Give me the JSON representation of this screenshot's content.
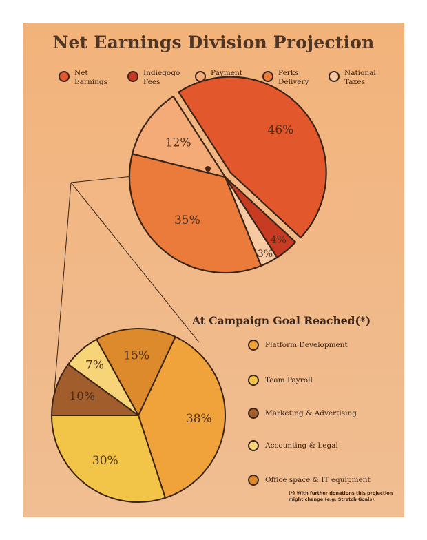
{
  "title": "Net Earnings Division Projection",
  "legend_top": [
    {
      "label": "Net\nEarnings",
      "color": "#e3572c"
    },
    {
      "label": "Indiegogo\nFees",
      "color": "#c73b22"
    },
    {
      "label": "Payment\nProcessing",
      "color": "#f4ab78"
    },
    {
      "label": "Perks\nDelivery",
      "color": "#eb7b3b"
    },
    {
      "label": "National\nTaxes",
      "color": "#f7c9a2"
    }
  ],
  "subtitle": "At Campaign Goal Reached(*)",
  "legend_bottom": [
    {
      "label": "Platform Development",
      "color": "#f0a33b"
    },
    {
      "label": "Team Payroll",
      "color": "#f2c548"
    },
    {
      "label": "Marketing & Advertising",
      "color": "#a15d2c"
    },
    {
      "label": "Accounting & Legal",
      "color": "#f7d477"
    },
    {
      "label": "Office space & IT equipment",
      "color": "#dd8a2c"
    }
  ],
  "footnote": "(*) With further donations this projection\nmight change (e.g. Stretch Goals)",
  "chart_data": [
    {
      "type": "pie",
      "title": "Net Earnings Division Projection",
      "categories": [
        "Net Earnings",
        "Indiegogo Fees",
        "National Taxes",
        "Perks Delivery",
        "Payment Processing"
      ],
      "values": [
        46,
        4,
        3,
        35,
        12
      ],
      "labels": [
        "46%",
        "4%",
        "3%",
        "35%",
        "12%"
      ],
      "colors": [
        "#e3572c",
        "#c73b22",
        "#f7c9a2",
        "#eb7b3b",
        "#f4ab78"
      ],
      "exploded": "Net Earnings"
    },
    {
      "type": "pie",
      "title": "At Campaign Goal Reached(*)",
      "categories": [
        "Platform Development",
        "Team Payroll",
        "Marketing & Advertising",
        "Accounting & Legal",
        "Office space & IT equipment"
      ],
      "values": [
        38,
        30,
        10,
        7,
        15
      ],
      "labels": [
        "38%",
        "30%",
        "10%",
        "7%",
        "15%"
      ],
      "colors": [
        "#f0a33b",
        "#f2c548",
        "#a15d2c",
        "#f7d477",
        "#dd8a2c"
      ]
    }
  ]
}
